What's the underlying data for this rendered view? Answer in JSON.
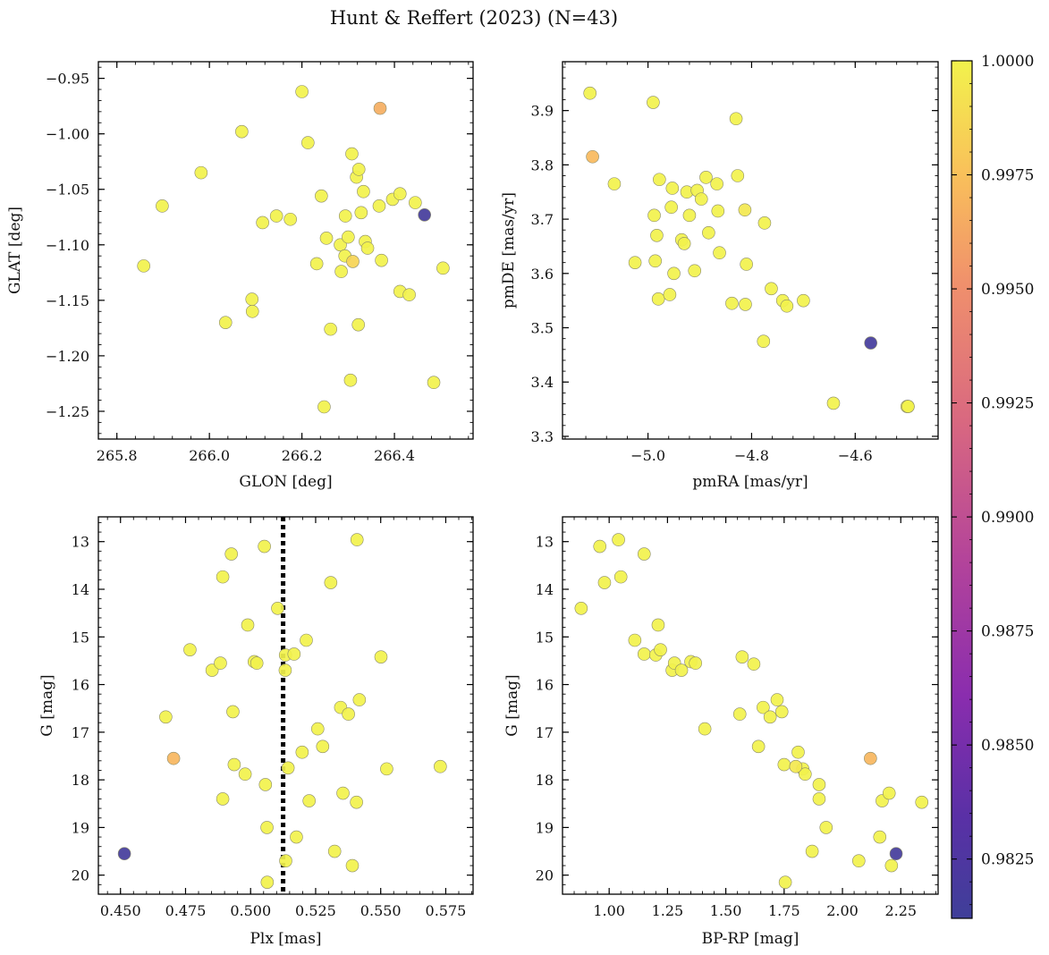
{
  "figure": {
    "title": "Hunt & Reffert (2023) (N=43)"
  },
  "colorbar": {
    "min": 0.9812,
    "max": 1.0,
    "colormap": "plasma",
    "ticks": [
      "1.0000",
      "0.9975",
      "0.9950",
      "0.9925",
      "0.9900",
      "0.9875",
      "0.9850",
      "0.9825"
    ],
    "tick_values": [
      1.0,
      0.9975,
      0.995,
      0.9925,
      0.99,
      0.9875,
      0.985,
      0.9825
    ]
  },
  "chart_data": [
    {
      "type": "scatter",
      "name": "GLON vs GLAT",
      "xlabel": "GLON [deg]",
      "ylabel": "GLAT [deg]",
      "xlim": [
        265.76,
        266.57
      ],
      "ylim": [
        -1.275,
        -0.935
      ],
      "xticks": [
        "265.8",
        "266.0",
        "266.2",
        "266.4"
      ],
      "xtick_values": [
        265.8,
        266.0,
        266.2,
        266.4
      ],
      "yticks": [
        "−0.95",
        "−1.00",
        "−1.05",
        "−1.10",
        "−1.15",
        "−1.20",
        "−1.25"
      ],
      "ytick_values": [
        -0.95,
        -1.0,
        -1.05,
        -1.1,
        -1.15,
        -1.2,
        -1.25
      ],
      "x": [
        265.858,
        265.898,
        265.982,
        266.035,
        266.07,
        266.092,
        266.093,
        266.115,
        266.145,
        266.175,
        266.2,
        266.213,
        266.232,
        266.242,
        266.248,
        266.253,
        266.262,
        266.283,
        266.285,
        266.293,
        266.294,
        266.3,
        266.305,
        266.308,
        266.31,
        266.318,
        266.322,
        266.323,
        266.328,
        266.333,
        266.337,
        266.342,
        266.367,
        266.369,
        266.372,
        266.396,
        266.412,
        266.412,
        266.432,
        266.445,
        266.465,
        266.485,
        266.505
      ],
      "y": [
        -1.119,
        -1.065,
        -1.035,
        -1.17,
        -0.998,
        -1.149,
        -1.16,
        -1.08,
        -1.074,
        -1.077,
        -0.962,
        -1.008,
        -1.117,
        -1.056,
        -1.246,
        -1.094,
        -1.176,
        -1.1,
        -1.124,
        -1.11,
        -1.074,
        -1.093,
        -1.222,
        -1.018,
        -1.115,
        -1.039,
        -1.172,
        -1.032,
        -1.071,
        -1.052,
        -1.097,
        -1.103,
        -1.065,
        -0.977,
        -1.114,
        -1.059,
        -1.142,
        -1.054,
        -1.145,
        -1.062,
        -1.073,
        -1.224,
        -1.121
      ],
      "prob": [
        1,
        1,
        1,
        1,
        1,
        1,
        1,
        1,
        1,
        1,
        1,
        1,
        1,
        1,
        1,
        1,
        1,
        1,
        1,
        1,
        1,
        1,
        1,
        1,
        0.9985,
        1,
        1,
        1,
        1,
        1,
        1,
        1,
        1,
        0.9966,
        1,
        1,
        1,
        1,
        1,
        1,
        0.9816,
        1,
        1
      ]
    },
    {
      "type": "scatter",
      "name": "pmRA vs pmDE",
      "xlabel": "pmRA [mas/yr]",
      "ylabel": "pmDE [mas/yr]",
      "xlim": [
        -5.165,
        -4.44
      ],
      "ylim": [
        3.295,
        3.99
      ],
      "xticks": [
        "−5.0",
        "−4.8",
        "−4.6"
      ],
      "xtick_values": [
        -5.0,
        -4.8,
        -4.6
      ],
      "yticks": [
        "3.3",
        "3.4",
        "3.5",
        "3.6",
        "3.7",
        "3.8",
        "3.9"
      ],
      "ytick_values": [
        3.3,
        3.4,
        3.5,
        3.6,
        3.7,
        3.8,
        3.9
      ],
      "x": [
        -5.112,
        -5.107,
        -5.065,
        -5.025,
        -4.99,
        -4.988,
        -4.986,
        -4.983,
        -4.98,
        -4.978,
        -4.958,
        -4.955,
        -4.953,
        -4.95,
        -4.935,
        -4.93,
        -4.925,
        -4.92,
        -4.91,
        -4.905,
        -4.897,
        -4.888,
        -4.883,
        -4.867,
        -4.865,
        -4.862,
        -4.838,
        -4.83,
        -4.827,
        -4.813,
        -4.812,
        -4.81,
        -4.777,
        -4.775,
        -4.762,
        -4.74,
        -4.732,
        -4.7,
        -4.642,
        -4.57,
        -4.498,
        -4.5,
        -4.498
      ],
      "y": [
        3.932,
        3.815,
        3.765,
        3.62,
        3.915,
        3.707,
        3.623,
        3.67,
        3.553,
        3.773,
        3.561,
        3.722,
        3.757,
        3.6,
        3.662,
        3.655,
        3.75,
        3.707,
        3.605,
        3.753,
        3.737,
        3.777,
        3.675,
        3.765,
        3.715,
        3.638,
        3.545,
        3.885,
        3.78,
        3.717,
        3.543,
        3.617,
        3.475,
        3.693,
        3.572,
        3.55,
        3.54,
        3.55,
        3.361,
        3.472,
        3.355,
        3.355,
        3.355
      ],
      "prob": [
        1,
        0.9972,
        1,
        1,
        1,
        1,
        1,
        1,
        1,
        1,
        1,
        1,
        1,
        1,
        1,
        1,
        1,
        1,
        1,
        1,
        1,
        1,
        1,
        1,
        1,
        1,
        1,
        1,
        1,
        0.9995,
        1,
        1,
        1,
        1,
        1,
        1,
        1,
        1,
        1,
        0.9816,
        1,
        1,
        1
      ]
    },
    {
      "type": "scatter",
      "name": "Plx vs G",
      "xlabel": "Plx [mas]",
      "ylabel": "G [mag]",
      "xlim": [
        0.4415,
        0.5855
      ],
      "ylim": [
        20.4,
        12.48
      ],
      "xticks": [
        "0.450",
        "0.475",
        "0.500",
        "0.525",
        "0.550",
        "0.575"
      ],
      "xtick_values": [
        0.45,
        0.475,
        0.5,
        0.525,
        0.55,
        0.575
      ],
      "yticks": [
        "13",
        "14",
        "15",
        "16",
        "17",
        "18",
        "19",
        "20"
      ],
      "ytick_values": [
        13,
        14,
        15,
        16,
        17,
        18,
        19,
        20
      ],
      "vline": 0.5125,
      "x": [
        0.4515,
        0.4674,
        0.4704,
        0.4767,
        0.4852,
        0.4884,
        0.4893,
        0.4893,
        0.4926,
        0.4932,
        0.4937,
        0.4979,
        0.4989,
        0.5014,
        0.5024,
        0.5057,
        0.5053,
        0.5063,
        0.5064,
        0.5104,
        0.5134,
        0.5133,
        0.5135,
        0.5144,
        0.5167,
        0.5176,
        0.5198,
        0.5225,
        0.5214,
        0.5258,
        0.5277,
        0.5308,
        0.5323,
        0.5346,
        0.5355,
        0.5376,
        0.5391,
        0.5407,
        0.5409,
        0.5418,
        0.5501,
        0.5523,
        0.5729
      ],
      "y": [
        19.55,
        16.68,
        17.55,
        15.27,
        15.7,
        15.55,
        13.74,
        18.4,
        13.26,
        16.57,
        17.68,
        17.88,
        14.75,
        15.52,
        15.55,
        18.1,
        13.1,
        19.0,
        20.15,
        14.4,
        15.38,
        15.7,
        19.7,
        17.75,
        15.36,
        19.2,
        17.42,
        18.44,
        15.07,
        16.93,
        17.3,
        13.86,
        19.5,
        16.48,
        18.28,
        16.62,
        19.8,
        18.47,
        12.96,
        16.32,
        15.42,
        17.77,
        17.72
      ],
      "prob": [
        0.9816,
        1,
        0.997,
        1,
        1,
        1,
        1,
        1,
        1,
        1,
        1,
        1,
        1,
        1,
        1,
        1,
        1,
        1,
        1,
        1,
        1,
        1,
        1,
        1,
        1,
        1,
        1,
        1,
        1,
        1,
        1,
        1,
        1,
        1,
        1,
        1,
        1,
        1,
        1,
        1,
        1,
        1,
        1
      ]
    },
    {
      "type": "scatter",
      "name": "BP-RP vs G",
      "xlabel": "BP-RP [mag]",
      "ylabel": "G [mag]",
      "xlim": [
        0.8,
        2.41
      ],
      "ylim": [
        20.4,
        12.48
      ],
      "xticks": [
        "1.00",
        "1.25",
        "1.50",
        "1.75",
        "2.00",
        "2.25"
      ],
      "xtick_values": [
        1.0,
        1.25,
        1.5,
        1.75,
        2.0,
        2.25
      ],
      "yticks": [
        "13",
        "14",
        "15",
        "16",
        "17",
        "18",
        "19",
        "20"
      ],
      "ytick_values": [
        13,
        14,
        15,
        16,
        17,
        18,
        19,
        20
      ],
      "x": [
        0.88,
        0.96,
        0.98,
        1.04,
        1.05,
        1.11,
        1.15,
        1.15,
        1.2,
        1.21,
        1.22,
        1.27,
        1.28,
        1.31,
        1.35,
        1.37,
        1.41,
        1.56,
        1.57,
        1.62,
        1.64,
        1.66,
        1.69,
        1.72,
        1.74,
        1.75,
        1.755,
        1.8,
        1.81,
        1.83,
        1.84,
        1.87,
        1.9,
        1.9,
        1.93,
        2.07,
        2.12,
        2.16,
        2.17,
        2.2,
        2.21,
        2.23,
        2.34
      ],
      "y": [
        14.4,
        13.1,
        13.86,
        12.96,
        13.74,
        15.07,
        15.36,
        13.26,
        15.38,
        14.75,
        15.27,
        15.7,
        15.55,
        15.7,
        15.52,
        15.55,
        16.93,
        16.62,
        15.42,
        15.57,
        17.3,
        16.48,
        16.68,
        16.32,
        16.57,
        17.68,
        20.15,
        17.72,
        17.42,
        17.77,
        17.88,
        19.5,
        18.1,
        18.4,
        19.0,
        19.7,
        17.55,
        19.2,
        18.44,
        18.28,
        19.8,
        19.55,
        18.47
      ],
      "prob": [
        1,
        1,
        1,
        1,
        1,
        1,
        1,
        1,
        1,
        1,
        1,
        1,
        1,
        1,
        1,
        1,
        1,
        1,
        1,
        1,
        1,
        1,
        1,
        1,
        1,
        1,
        1,
        0.9995,
        1,
        1,
        1,
        1,
        1,
        1,
        1,
        1,
        0.997,
        1,
        1,
        1,
        1,
        0.9816,
        1
      ]
    }
  ]
}
